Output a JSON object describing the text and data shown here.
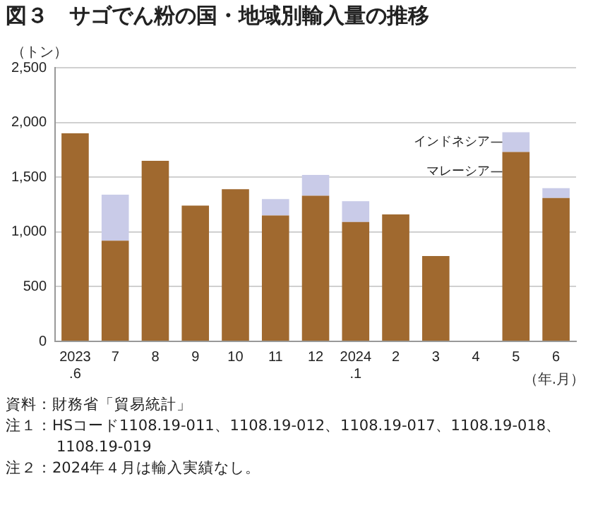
{
  "chart_data": {
    "type": "bar",
    "stacked": true,
    "title": "図３　サゴでん粉の国・地域別輸入量の推移",
    "ylabel": "（トン）",
    "xlabel": "（年.月）",
    "categories": [
      "2023\n.6",
      "7",
      "8",
      "9",
      "10",
      "11",
      "12",
      "2024\n.1",
      "2",
      "3",
      "4",
      "5",
      "6"
    ],
    "series": [
      {
        "name": "マレーシア",
        "color": "#a0692f",
        "values": [
          1900,
          920,
          1650,
          1240,
          1390,
          1150,
          1330,
          1090,
          1160,
          780,
          null,
          1730,
          1310
        ]
      },
      {
        "name": "インドネシア",
        "color": "#c9cbe8",
        "values": [
          null,
          420,
          null,
          null,
          null,
          150,
          190,
          190,
          null,
          null,
          null,
          180,
          90
        ]
      }
    ],
    "ylim": [
      0,
      2500
    ],
    "yticks": [
      0,
      {
        "value": 500,
        "label": "500"
      },
      {
        "value": 1000,
        "label": "1,000"
      },
      {
        "value": 1500,
        "label": "1,500"
      },
      {
        "value": 2000,
        "label": "2,000"
      },
      {
        "value": 2500,
        "label": "2,500"
      }
    ],
    "grid": "y",
    "legend": false,
    "annotations": [
      "資料：財務省「貿易統計」",
      "注１：HSコード1108.19-011、1108.19-012、1108.19-017、1108.19-018、1108.19-019",
      "注２：2024年４月は輸入実績なし。"
    ]
  }
}
